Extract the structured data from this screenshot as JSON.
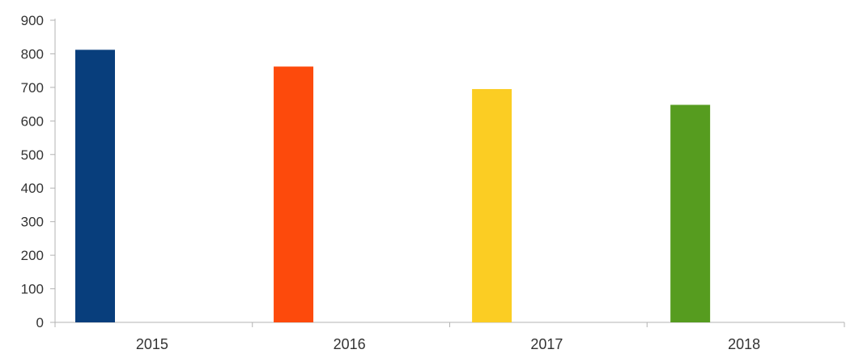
{
  "chart_data": {
    "type": "bar",
    "title": "",
    "xlabel": "",
    "ylabel": "",
    "categories": [
      "2015",
      "2016",
      "2017",
      "2018"
    ],
    "values": [
      812,
      762,
      695,
      648
    ],
    "colors": [
      "#083e7c",
      "#fd4a0c",
      "#fbcd23",
      "#569c1f"
    ],
    "ylim": [
      0,
      900
    ],
    "yticks": [
      "0",
      "100",
      "200",
      "300",
      "400",
      "500",
      "600",
      "700",
      "800",
      "900"
    ],
    "grid": false,
    "legend": "none"
  }
}
